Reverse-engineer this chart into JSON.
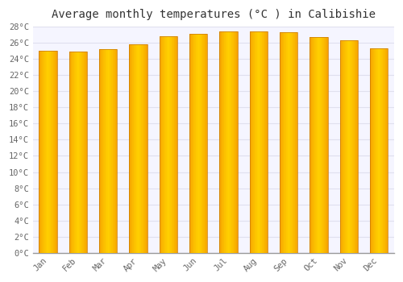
{
  "title": "Average monthly temperatures (°C ) in Calibishie",
  "months": [
    "Jan",
    "Feb",
    "Mar",
    "Apr",
    "May",
    "Jun",
    "Jul",
    "Aug",
    "Sep",
    "Oct",
    "Nov",
    "Dec"
  ],
  "temperatures": [
    25.0,
    24.9,
    25.2,
    25.8,
    26.8,
    27.1,
    27.4,
    27.4,
    27.3,
    26.7,
    26.3,
    25.3
  ],
  "bar_color_center": "#FFD000",
  "bar_color_edge": "#F5A000",
  "bar_edge_color": "#C87800",
  "ylim": [
    0,
    28
  ],
  "ytick_step": 2,
  "background_color": "#ffffff",
  "plot_bg_color": "#f5f5ff",
  "grid_color": "#e0e0ee",
  "title_fontsize": 10,
  "tick_fontsize": 7.5,
  "font_family": "monospace"
}
